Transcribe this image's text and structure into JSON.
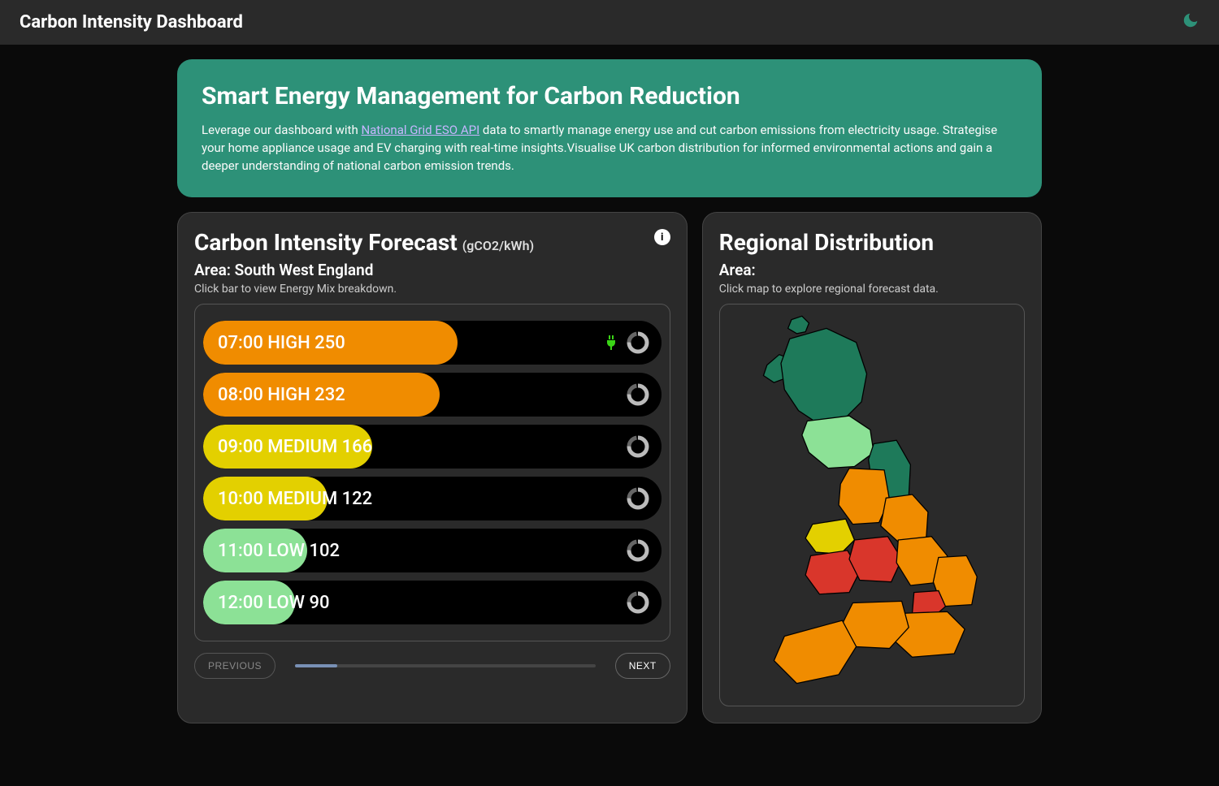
{
  "app_title": "Carbon Intensity Dashboard",
  "hero": {
    "title": "Smart Energy Management for Carbon Reduction",
    "text_before_link": "Leverage our dashboard with ",
    "link_text": "National Grid ESO API",
    "text_after_link": " data to smartly manage energy use and cut carbon emissions from electricity usage. Strategise your home appliance usage and EV charging with real-time insights.Visualise UK carbon distribution for informed environmental actions and gain a deeper understanding of national carbon emission trends."
  },
  "forecast": {
    "title": "Carbon Intensity Forecast ",
    "unit": "(gCO2/kWh)",
    "area_prefix": "Area: ",
    "area": "South West England",
    "hint": "Click bar to view Energy Mix breakdown.",
    "max_value": 450,
    "level_colors": {
      "HIGH": "#f08c00",
      "MEDIUM": "#e3d000",
      "LOW": "#8ce196"
    },
    "bars": [
      {
        "time": "07:00",
        "level": "HIGH",
        "value": 250,
        "plug": true
      },
      {
        "time": "08:00",
        "level": "HIGH",
        "value": 232,
        "plug": false
      },
      {
        "time": "09:00",
        "level": "MEDIUM",
        "value": 166,
        "plug": false
      },
      {
        "time": "10:00",
        "level": "MEDIUM",
        "value": 122,
        "plug": false
      },
      {
        "time": "11:00",
        "level": "LOW",
        "value": 102,
        "plug": false
      },
      {
        "time": "12:00",
        "level": "LOW",
        "value": 90,
        "plug": false
      }
    ],
    "prev_label": "PREVIOUS",
    "next_label": "NEXT",
    "slider_progress_pct": 14
  },
  "regional": {
    "title": "Regional Distribution",
    "area_prefix": "Area:",
    "hint": "Click map to explore regional forecast data.",
    "colors": {
      "dark_green": "#1e7a5a",
      "light_green": "#8ce196",
      "yellow": "#e3d000",
      "orange": "#f08c00",
      "red": "#d9362b"
    }
  }
}
